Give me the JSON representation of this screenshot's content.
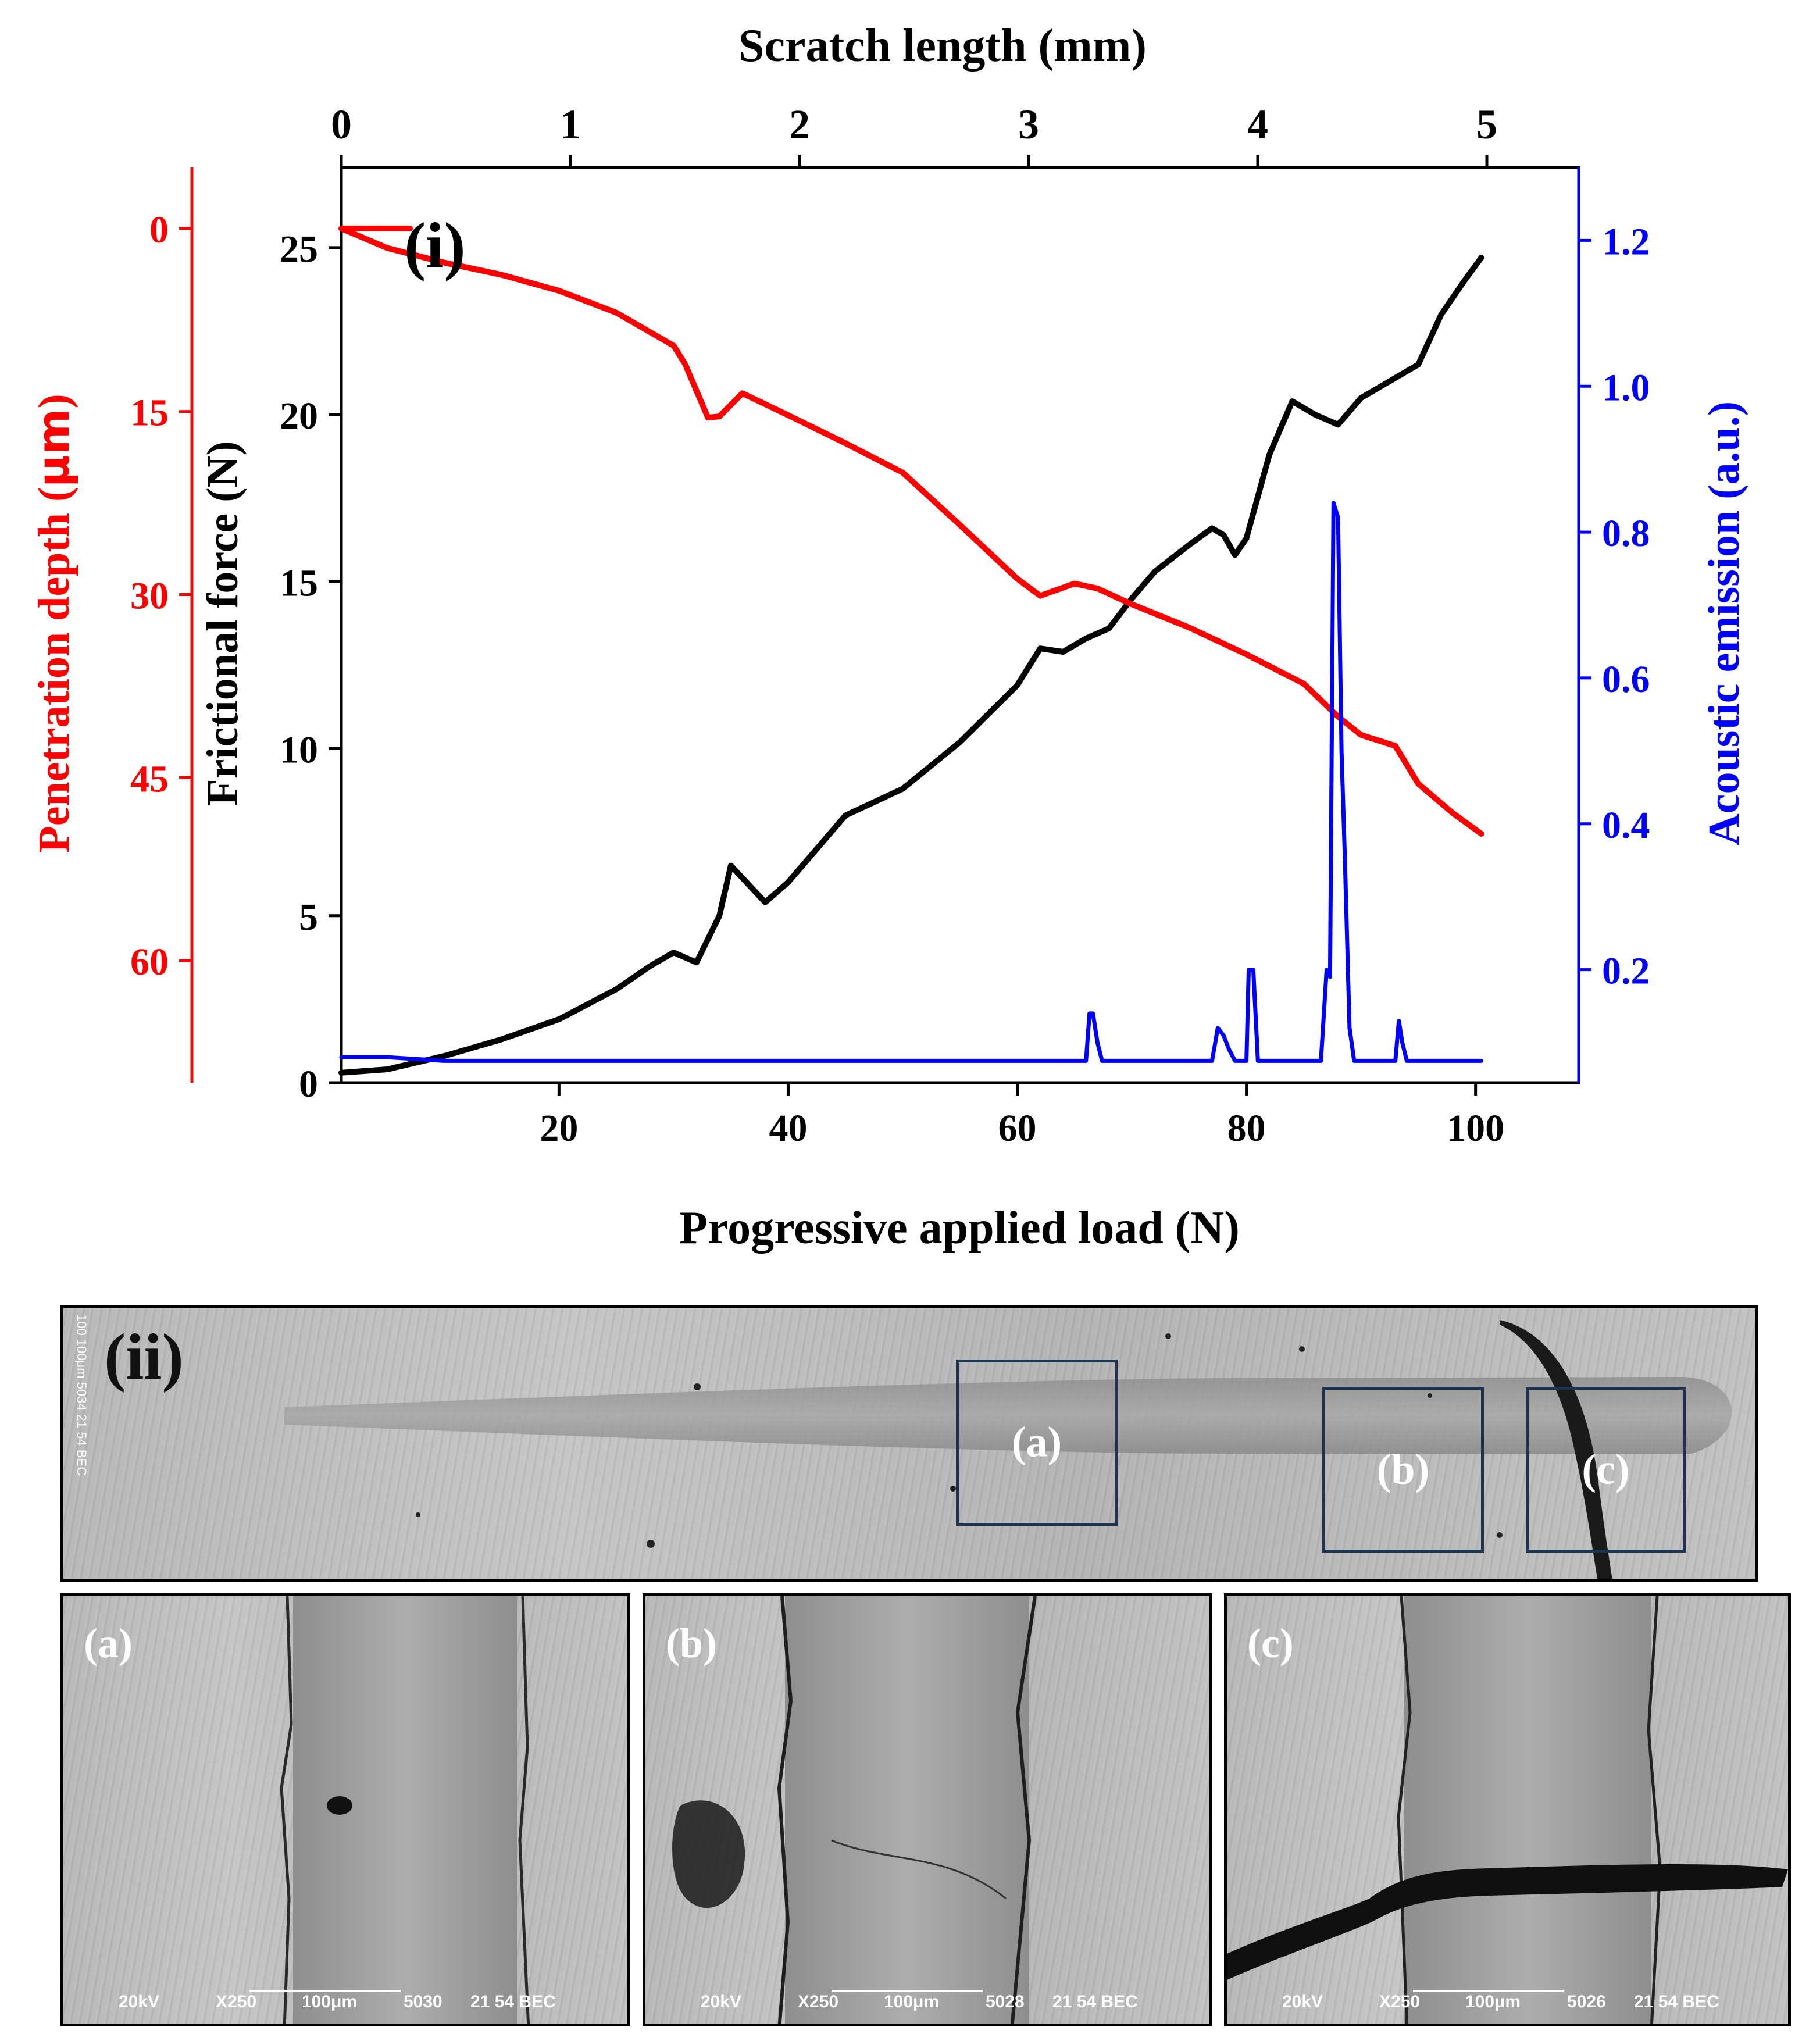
{
  "chart_data": {
    "type": "line",
    "panel_label": "(i)",
    "top_axis": {
      "label": "Scratch length (mm)",
      "ticks": [
        "0",
        "1",
        "2",
        "3",
        "4",
        "5"
      ]
    },
    "x_axis": {
      "label": "Progressive applied load (N)",
      "ticks": [
        "20",
        "40",
        "60",
        "80",
        "100"
      ],
      "range": [
        1,
        109
      ]
    },
    "left_axis_depth": {
      "label_prefix": "Penetration depth (",
      "label_unit": "μm",
      "label_suffix": ")",
      "ticks": [
        "0",
        "15",
        "30",
        "45",
        "60"
      ],
      "range": [
        -5,
        70
      ],
      "color": "#ff0000"
    },
    "left_axis_force": {
      "label": "Frictional force (N)",
      "ticks": [
        "0",
        "5",
        "10",
        "15",
        "20",
        "25"
      ],
      "range": [
        0,
        27.4
      ],
      "color": "#000000"
    },
    "right_axis": {
      "label": "Acoustic emission (a.u.)",
      "ticks": [
        "0.2",
        "0.4",
        "0.6",
        "0.8",
        "1.0",
        "1.2"
      ],
      "range": [
        0.045,
        1.3
      ],
      "color": "#0000ff"
    },
    "series": [
      {
        "name": "Frictional force",
        "color": "#000000",
        "x": [
          1,
          5,
          10,
          15,
          20,
          25,
          28,
          30,
          32,
          34,
          35,
          38,
          40,
          45,
          50,
          55,
          60,
          62,
          64,
          66,
          68,
          70,
          72,
          75,
          77,
          78,
          79,
          80,
          82,
          84,
          86,
          88,
          90,
          92,
          95,
          97,
          99,
          100.5
        ],
        "y": [
          0.3,
          0.4,
          0.8,
          1.3,
          1.9,
          2.8,
          3.5,
          3.9,
          3.6,
          5.0,
          6.5,
          5.4,
          6.0,
          8.0,
          8.8,
          10.2,
          11.9,
          13.0,
          12.9,
          13.3,
          13.6,
          14.5,
          15.3,
          16.1,
          16.6,
          16.4,
          15.8,
          16.3,
          18.8,
          20.4,
          20.0,
          19.7,
          20.5,
          20.9,
          21.5,
          23.0,
          24.0,
          24.7
        ]
      },
      {
        "name": "Penetration depth",
        "color": "#ff0000",
        "x": [
          1,
          7,
          1,
          5,
          10,
          15,
          20,
          25,
          30,
          31,
          33,
          34,
          36,
          40,
          45,
          50,
          55,
          60,
          62,
          65,
          67,
          70,
          75,
          80,
          85,
          88,
          90,
          93,
          95,
          98,
          100.5
        ],
        "y": [
          0,
          0,
          0,
          1.6,
          2.8,
          3.8,
          5.1,
          6.9,
          9.6,
          11.1,
          15.5,
          15.4,
          13.5,
          15.3,
          17.6,
          20.0,
          24.3,
          28.7,
          30.1,
          29.1,
          29.5,
          30.8,
          32.7,
          34.9,
          37.3,
          40.0,
          41.5,
          42.4,
          45.5,
          47.9,
          49.6
        ]
      },
      {
        "name": "Acoustic emission",
        "color": "#0000ff",
        "x": [
          1,
          5,
          10,
          20,
          30,
          40,
          50,
          60,
          66,
          66.3,
          66.6,
          67,
          67.4,
          77,
          77.5,
          78,
          78.5,
          79,
          80,
          80.2,
          80.6,
          81,
          86.5,
          87,
          87.3,
          87.6,
          88,
          88.3,
          88.6,
          89,
          89.4,
          93,
          93.3,
          93.6,
          94,
          97,
          100.5
        ],
        "y": [
          0.08,
          0.08,
          0.075,
          0.075,
          0.075,
          0.075,
          0.075,
          0.075,
          0.075,
          0.14,
          0.14,
          0.1,
          0.075,
          0.075,
          0.12,
          0.11,
          0.09,
          0.075,
          0.075,
          0.2,
          0.2,
          0.075,
          0.075,
          0.2,
          0.19,
          0.84,
          0.82,
          0.5,
          0.35,
          0.12,
          0.075,
          0.075,
          0.13,
          0.1,
          0.075,
          0.075,
          0.075
        ]
      }
    ]
  },
  "sem": {
    "overview": {
      "label": "(ii)",
      "meta": "100    100μm    5034    21 54 BEC",
      "zoom_boxes": [
        {
          "label": "(a)"
        },
        {
          "label": "(b)"
        },
        {
          "label": "(c)"
        }
      ]
    },
    "details": [
      {
        "label": "(a)",
        "kv": "20kV",
        "mag": "X250",
        "bar": "100μm",
        "id": "5030",
        "code": "21 54 BEC"
      },
      {
        "label": "(b)",
        "kv": "20kV",
        "mag": "X250",
        "bar": "100μm",
        "id": "5028",
        "code": "21 54 BEC"
      },
      {
        "label": "(c)",
        "kv": "20kV",
        "mag": "X250",
        "bar": "100μm",
        "id": "5026",
        "code": "21 54 BEC"
      }
    ]
  }
}
